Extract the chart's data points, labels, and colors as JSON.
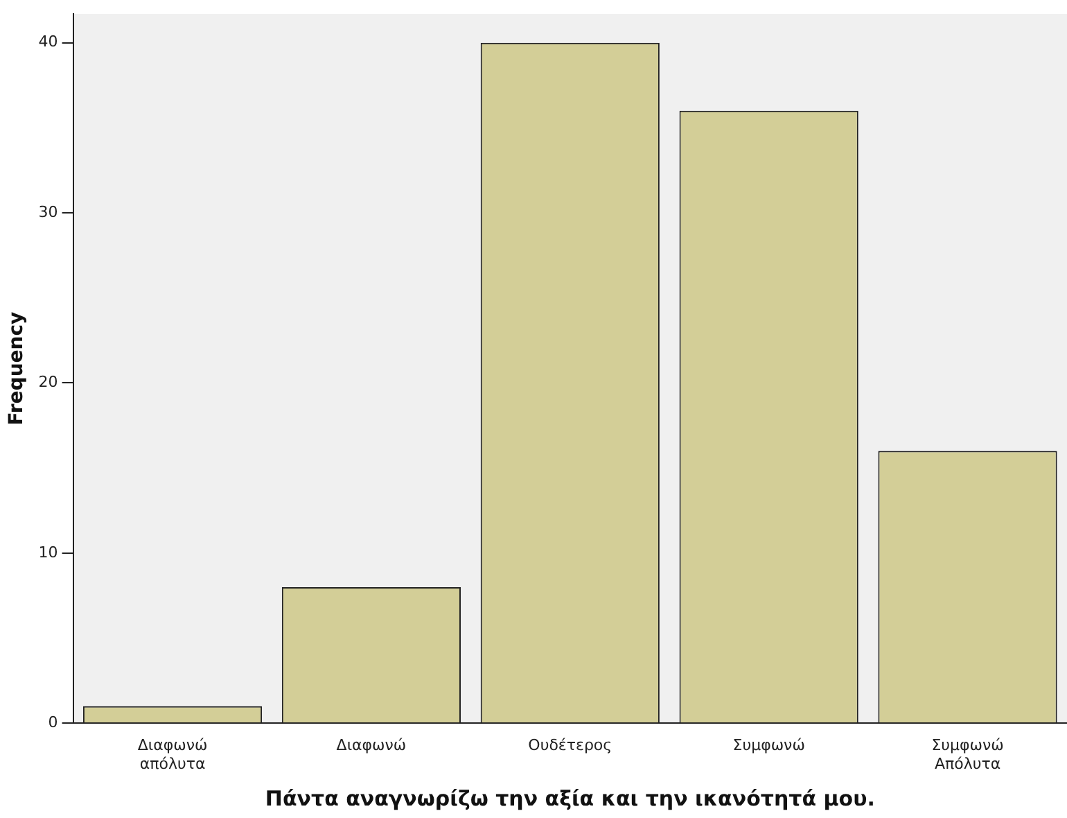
{
  "chart_data": {
    "type": "bar",
    "xlabel": "Πάντα αναγνωρίζω την αξία και την ικανότητά μου.",
    "ylabel": "Frequency",
    "categories": [
      "Διαφωνώ απόλυτα",
      "Διαφωνώ",
      "Ουδέτερος",
      "Συμφωνώ",
      "Συμφωνώ Απόλυτα"
    ],
    "values": [
      1,
      8,
      40,
      36,
      16
    ],
    "color": "#d3ce97",
    "ylim": [
      0,
      41.7
    ],
    "yticks": [
      0,
      10,
      20,
      30,
      40
    ],
    "grid": false,
    "legend": false
  }
}
